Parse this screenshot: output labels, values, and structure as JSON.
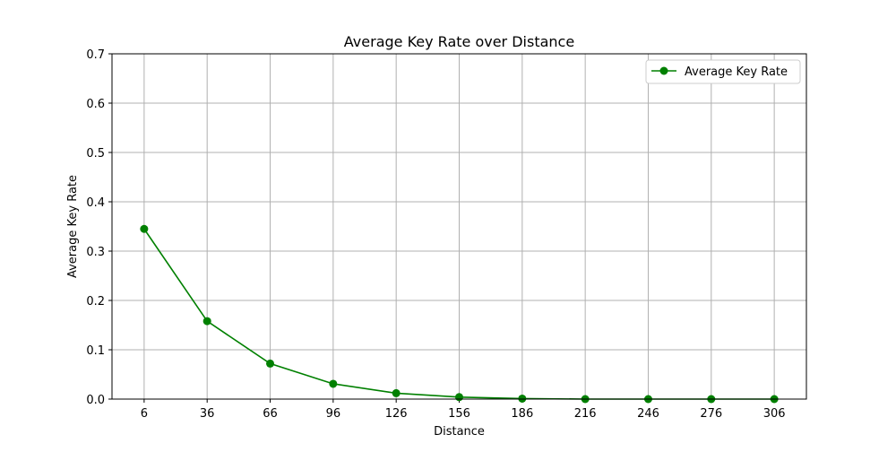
{
  "chart_data": {
    "type": "line",
    "title": "Average Key Rate over Distance",
    "xlabel": "Distance",
    "ylabel": "Average Key Rate",
    "x": [
      6,
      36,
      66,
      96,
      126,
      156,
      186,
      216,
      246,
      276,
      306
    ],
    "x_ticks": [
      "6",
      "36",
      "66",
      "96",
      "126",
      "156",
      "186",
      "216",
      "246",
      "276",
      "306"
    ],
    "y_ticks": [
      "0.0",
      "0.1",
      "0.2",
      "0.3",
      "0.4",
      "0.5",
      "0.6",
      "0.7"
    ],
    "ylim": [
      0,
      0.7
    ],
    "xlim": [
      -9.3,
      321.3
    ],
    "grid": true,
    "legend_position": "top-right",
    "series": [
      {
        "name": "Average Key Rate",
        "color": "#008000",
        "marker": "circle",
        "values": [
          0.345,
          0.158,
          0.072,
          0.031,
          0.012,
          0.004,
          0.001,
          0.0,
          0.0,
          0.0,
          0.0
        ]
      }
    ]
  }
}
